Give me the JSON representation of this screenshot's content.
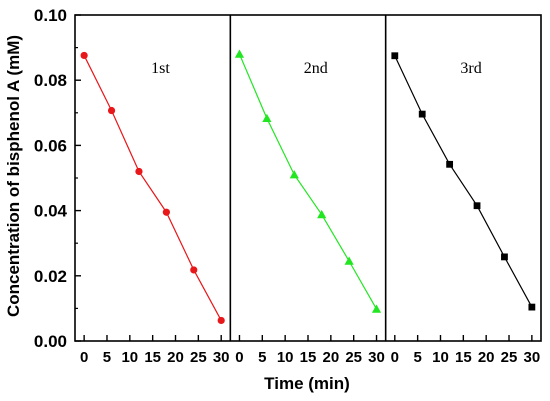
{
  "chart_data": {
    "type": "line",
    "xlabel": "Time (min)",
    "ylabel": "Concentration of bisphenol A (mM)",
    "ylim": [
      0.0,
      0.1
    ],
    "xlim": [
      -2,
      32
    ],
    "y_ticks": [
      "0.00",
      "0.02",
      "0.04",
      "0.06",
      "0.08",
      "0.10"
    ],
    "x_ticks": [
      "0",
      "5",
      "10",
      "15",
      "20",
      "25",
      "30"
    ],
    "grid": false,
    "legend": "none",
    "panels": [
      {
        "label": "1st",
        "marker": "circle",
        "color": "#e8171a",
        "x": [
          0,
          6,
          12,
          18,
          24,
          30
        ],
        "y": [
          0.0876,
          0.0707,
          0.052,
          0.0395,
          0.0218,
          0.0063
        ]
      },
      {
        "label": "2nd",
        "marker": "triangle",
        "color": "#22e622",
        "x": [
          0,
          6,
          12,
          18,
          24,
          30
        ],
        "y": [
          0.088,
          0.0683,
          0.051,
          0.0388,
          0.0245,
          0.0098
        ]
      },
      {
        "label": "3rd",
        "marker": "square",
        "color": "#000000",
        "x": [
          0,
          6,
          12,
          18,
          24,
          30
        ],
        "y": [
          0.0875,
          0.0696,
          0.0542,
          0.0415,
          0.0258,
          0.0104
        ]
      }
    ]
  }
}
